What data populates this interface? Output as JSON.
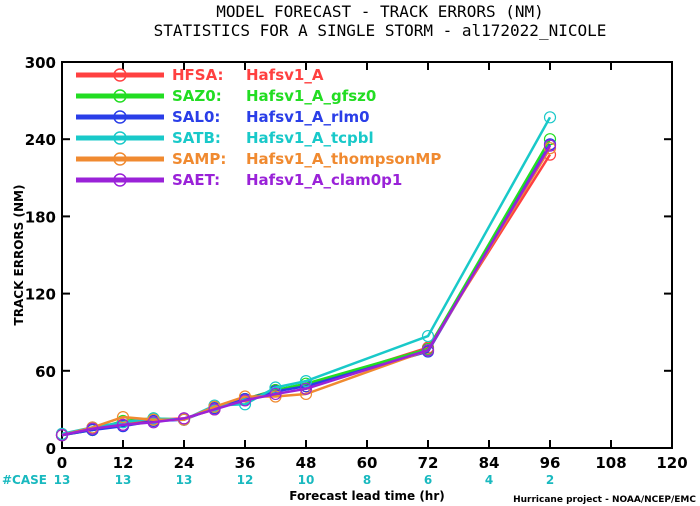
{
  "chart_data": {
    "type": "line",
    "title_line1": "MODEL FORECAST - TRACK ERRORS (NM)",
    "title_line2": "STATISTICS FOR A SINGLE STORM - al172022_NICOLE",
    "xlabel": "Forecast lead time (hr)",
    "ylabel": "TRACK ERRORS (NM)",
    "credit": "Hurricane project - NOAA/NCEP/EMC",
    "xlim": [
      0,
      120
    ],
    "ylim": [
      0,
      300
    ],
    "x_ticks": [
      "0",
      "12",
      "24",
      "36",
      "48",
      "60",
      "72",
      "84",
      "96",
      "108",
      "120"
    ],
    "y_ticks": [
      "0",
      "60",
      "120",
      "180",
      "240",
      "300"
    ],
    "case_label": "#CASE",
    "cases": [
      {
        "x": 0,
        "n": "13"
      },
      {
        "x": 12,
        "n": "13"
      },
      {
        "x": 24,
        "n": "13"
      },
      {
        "x": 36,
        "n": "12"
      },
      {
        "x": 48,
        "n": "10"
      },
      {
        "x": 60,
        "n": "8"
      },
      {
        "x": 72,
        "n": "6"
      },
      {
        "x": 84,
        "n": "4"
      },
      {
        "x": 96,
        "n": "2"
      }
    ],
    "x": [
      0,
      6,
      12,
      18,
      24,
      30,
      36,
      42,
      48,
      72,
      96
    ],
    "series": [
      {
        "name": "HFSA:",
        "model": "Hafsv1_A",
        "color": "#ff4040",
        "values": [
          10,
          15,
          18,
          22,
          23,
          30,
          38,
          45,
          48,
          78,
          228
        ]
      },
      {
        "name": "SAZ0:",
        "model": "Hafsv1_A_gfsz0",
        "color": "#22dd22",
        "values": [
          10,
          14,
          21,
          23,
          22,
          32,
          38,
          45,
          50,
          77,
          240
        ]
      },
      {
        "name": "SAL0:",
        "model": "Hafsv1_A_rlm0",
        "color": "#2a3ee8",
        "values": [
          10,
          14,
          17,
          21,
          22,
          31,
          38,
          44,
          48,
          75,
          236
        ]
      },
      {
        "name": "SATB:",
        "model": "Hafsv1_A_tcpbl",
        "color": "#19c9c9",
        "values": [
          11,
          16,
          20,
          23,
          22,
          33,
          34,
          47,
          52,
          87,
          257
        ]
      },
      {
        "name": "SAMP:",
        "model": "Hafsv1_A_thompsonMP",
        "color": "#f08a30",
        "values": [
          10,
          16,
          24,
          22,
          22,
          32,
          40,
          40,
          42,
          76,
          233
        ]
      },
      {
        "name": "SAET:",
        "model": "Hafsv1_A_clam0p1",
        "color": "#9a22d8",
        "values": [
          10,
          15,
          18,
          20,
          23,
          30,
          37,
          42,
          46,
          76,
          235
        ]
      }
    ],
    "legend_placement": "top-left",
    "grid": false
  }
}
